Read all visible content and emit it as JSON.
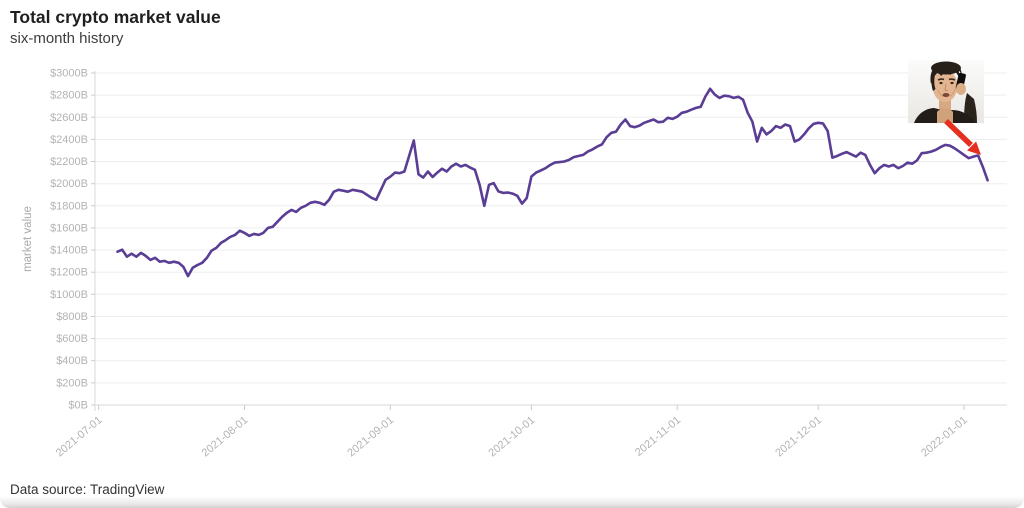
{
  "header": {
    "title": "Total crypto market value",
    "subtitle": "six-month history"
  },
  "footer": {
    "source_label": "Data source: TradingView"
  },
  "chart_data": {
    "type": "line",
    "title": "Total crypto market value",
    "subtitle": "six-month history",
    "ylabel": "market value",
    "xlabel": "",
    "ylim": [
      0,
      3000
    ],
    "grid": true,
    "legend": "none",
    "line_color": "#5a3d94",
    "y_tick_values": [
      0,
      200,
      400,
      600,
      800,
      1000,
      1200,
      1400,
      1600,
      1800,
      2000,
      2200,
      2400,
      2600,
      2800,
      3000
    ],
    "y_tick_labels": [
      "$0B",
      "$200B",
      "$400B",
      "$600B",
      "$800B",
      "$1000B",
      "$1200B",
      "$1400B",
      "$1600B",
      "$1800B",
      "$2000B",
      "$2200B",
      "$2400B",
      "$2600B",
      "$2800B",
      "$3000B"
    ],
    "x_tick_labels": [
      "2021-07-01",
      "2021-08-01",
      "2021-09-01",
      "2021-10-01",
      "2021-11-01",
      "2021-12-01",
      "2022-01-01"
    ],
    "x_tick_day_offsets": [
      -4,
      27,
      58,
      88,
      119,
      149,
      180
    ],
    "x_start_date": "2021-07-05",
    "frequency": "daily",
    "series": [
      {
        "name": "total crypto market value ($B)",
        "values": [
          1385,
          1403,
          1340,
          1367,
          1340,
          1374,
          1347,
          1311,
          1330,
          1295,
          1302,
          1285,
          1295,
          1285,
          1250,
          1165,
          1240,
          1265,
          1285,
          1330,
          1395,
          1420,
          1465,
          1490,
          1520,
          1537,
          1575,
          1555,
          1528,
          1546,
          1537,
          1555,
          1600,
          1610,
          1655,
          1700,
          1736,
          1763,
          1745,
          1782,
          1800,
          1827,
          1836,
          1827,
          1809,
          1854,
          1927,
          1945,
          1936,
          1927,
          1945,
          1936,
          1927,
          1900,
          1872,
          1854,
          1945,
          2035,
          2063,
          2100,
          2095,
          2110,
          2250,
          2390,
          2085,
          2055,
          2110,
          2060,
          2100,
          2135,
          2110,
          2155,
          2180,
          2155,
          2170,
          2145,
          2125,
          1990,
          1800,
          1990,
          2005,
          1930,
          1917,
          1920,
          1910,
          1890,
          1820,
          1870,
          2065,
          2100,
          2120,
          2140,
          2170,
          2190,
          2195,
          2200,
          2215,
          2240,
          2250,
          2260,
          2290,
          2310,
          2335,
          2355,
          2420,
          2460,
          2470,
          2535,
          2580,
          2520,
          2510,
          2525,
          2550,
          2565,
          2580,
          2555,
          2560,
          2595,
          2585,
          2605,
          2640,
          2650,
          2668,
          2685,
          2695,
          2788,
          2857,
          2805,
          2775,
          2795,
          2790,
          2775,
          2785,
          2760,
          2640,
          2560,
          2380,
          2505,
          2445,
          2475,
          2520,
          2505,
          2535,
          2520,
          2380,
          2400,
          2445,
          2500,
          2540,
          2550,
          2545,
          2475,
          2235,
          2250,
          2270,
          2285,
          2265,
          2245,
          2280,
          2260,
          2170,
          2095,
          2140,
          2170,
          2155,
          2170,
          2140,
          2160,
          2190,
          2180,
          2210,
          2275,
          2280,
          2290,
          2305,
          2330,
          2350,
          2343,
          2320,
          2290,
          2260,
          2230,
          2245,
          2255,
          2150,
          2030
        ]
      }
    ],
    "annotation": {
      "image": "man-on-phone-meme",
      "arrow_color": "#e52f1f",
      "points_to": "final drop of the line"
    }
  }
}
